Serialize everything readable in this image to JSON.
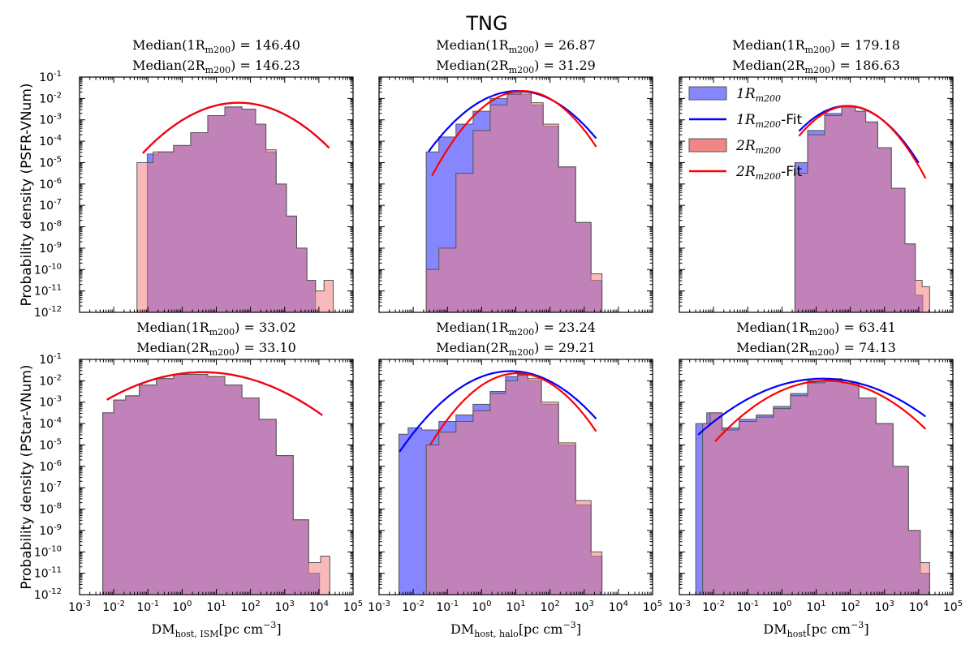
{
  "figure_title": "TNG",
  "colors": {
    "r1": "#0000ff",
    "r2": "#ff0000",
    "r1_fill": "#8080ff",
    "r2_fill": "#f08080",
    "overlap": "#c0407f",
    "edge": "#555555"
  },
  "legend": {
    "position": "top-right of upper-right panel",
    "entries": [
      {
        "math": "1R",
        "sub": "m200",
        "suffix": "",
        "style": "fill",
        "color": "r1_fill"
      },
      {
        "math": "1R",
        "sub": "m200",
        "suffix": "-Fit",
        "style": "line",
        "color": "r1"
      },
      {
        "math": "2R",
        "sub": "m200",
        "suffix": "",
        "style": "fill",
        "color": "r2_fill"
      },
      {
        "math": "2R",
        "sub": "m200",
        "suffix": "-Fit",
        "style": "line",
        "color": "r2"
      }
    ]
  },
  "chart_data": [
    {
      "type": "histogram",
      "panel": "top-left",
      "ylabel": "Probability density (PSFR-VNum)",
      "xlabel": "",
      "xscale": "log",
      "yscale": "log",
      "xlim_exp": [
        -3,
        5
      ],
      "ylim_exp": [
        -12,
        -1
      ],
      "median_1": "Median(1R_m200) = 146.40",
      "median_2": "Median(2R_m200) = 146.23",
      "hist_1": {
        "x_log": [
          -0.9,
          -0.5,
          0,
          0.5,
          1,
          1.5,
          2,
          2.3,
          2.6,
          2.9,
          3.2,
          3.5,
          3.8,
          4.0
        ],
        "y_log": [
          -4.6,
          -4.5,
          -4.2,
          -3.6,
          -2.8,
          -2.4,
          -2.5,
          -3.2,
          -4.5,
          -6,
          -7.5,
          -9,
          -10.5,
          -12
        ]
      },
      "hist_2": {
        "x_log": [
          -1.2,
          -0.5,
          0,
          0.5,
          1,
          1.5,
          2,
          2.3,
          2.6,
          2.9,
          3.2,
          3.5,
          3.8,
          4.0,
          4.3
        ],
        "y_log": [
          -5,
          -4.5,
          -4.2,
          -3.6,
          -2.8,
          -2.4,
          -2.5,
          -3.2,
          -4.4,
          -6,
          -7.5,
          -9,
          -10.5,
          -11,
          -10.5
        ]
      },
      "fit_1": {
        "x_log": [
          -1.15,
          4.3
        ],
        "mu": 1.65,
        "sigma": 0.85,
        "peak": -2.2
      },
      "fit_2": {
        "x_log": [
          -1.15,
          4.3
        ],
        "mu": 1.65,
        "sigma": 0.85,
        "peak": -2.2
      }
    },
    {
      "type": "histogram",
      "panel": "top-middle",
      "ylabel": "",
      "xlabel": "",
      "xscale": "log",
      "yscale": "log",
      "xlim_exp": [
        -3,
        5
      ],
      "ylim_exp": [
        -12,
        -1
      ],
      "median_1": "Median(1R_m200) = 26.87",
      "median_2": "Median(2R_m200) = 31.29",
      "hist_1": {
        "x_log": [
          -1.5,
          -1.0,
          -0.5,
          0,
          0.5,
          1.0,
          1.3,
          1.6,
          2.0,
          2.5,
          3.0,
          3.4
        ],
        "y_log": [
          -4.5,
          -3.8,
          -3.2,
          -2.6,
          -2.0,
          -1.7,
          -1.8,
          -2.3,
          -3.3,
          -5.2,
          -7.8,
          -10.5
        ]
      },
      "hist_2": {
        "x_log": [
          -1.5,
          -1.0,
          -0.5,
          0,
          0.5,
          1.0,
          1.3,
          1.6,
          2.0,
          2.5,
          3.0,
          3.4
        ],
        "y_log": [
          -10,
          -9,
          -5.5,
          -3.5,
          -2.3,
          -1.8,
          -1.7,
          -2.2,
          -3.2,
          -5.2,
          -7.8,
          -10.2
        ]
      },
      "fit_1": {
        "x_log": [
          -1.55,
          3.35
        ],
        "mu": 1.05,
        "sigma": 0.72,
        "peak": -1.65
      },
      "fit_2": {
        "x_log": [
          -1.45,
          3.35
        ],
        "mu": 1.2,
        "sigma": 0.62,
        "peak": -1.65
      }
    },
    {
      "type": "histogram",
      "panel": "top-right",
      "ylabel": "",
      "xlabel": "",
      "xscale": "log",
      "yscale": "log",
      "xlim_exp": [
        -3,
        5
      ],
      "ylim_exp": [
        -12,
        -1
      ],
      "median_1": "Median(1R_m200) = 179.18",
      "median_2": "Median(2R_m200) = 186.63",
      "hist_1": {
        "x_log": [
          0.5,
          1.0,
          1.5,
          2.0,
          2.3,
          2.6,
          3.0,
          3.4,
          3.8,
          4.0
        ],
        "y_log": [
          -5,
          -3.5,
          -2.7,
          -2.4,
          -2.6,
          -3.1,
          -4.3,
          -6.2,
          -8.8,
          -11.2
        ]
      },
      "hist_2": {
        "x_log": [
          0.5,
          1.0,
          1.5,
          2.0,
          2.3,
          2.6,
          3.0,
          3.4,
          3.8,
          4.0,
          4.2
        ],
        "y_log": [
          -5.5,
          -3.7,
          -2.8,
          -2.4,
          -2.6,
          -3.1,
          -4.3,
          -6.2,
          -8.8,
          -10.5,
          -10.8
        ]
      },
      "fit_1": {
        "x_log": [
          0.5,
          4.0
        ],
        "mu": 1.9,
        "sigma": 0.6,
        "peak": -2.35
      },
      "fit_2": {
        "x_log": [
          0.5,
          4.2
        ],
        "mu": 1.95,
        "sigma": 0.57,
        "peak": -2.35
      }
    },
    {
      "type": "histogram",
      "panel": "bottom-left",
      "ylabel": "Probability density (PStar-VNum)",
      "xlabel": "DM_host,ISM [pc cm^-3]",
      "xscale": "log",
      "yscale": "log",
      "xlim_exp": [
        -3,
        5
      ],
      "ylim_exp": [
        -12,
        -1
      ],
      "median_1": "Median(1R_m200) = 33.02",
      "median_2": "Median(2R_m200) = 33.10",
      "hist_1": {
        "x_log": [
          -2.2,
          -1.8,
          -1.5,
          -1.0,
          -0.5,
          0,
          0.5,
          1.0,
          1.5,
          2.0,
          2.5,
          3.0,
          3.5,
          3.9
        ],
        "y_log": [
          -3.5,
          -2.9,
          -2.7,
          -2.2,
          -1.9,
          -1.7,
          -1.7,
          -1.8,
          -2.2,
          -2.8,
          -3.8,
          -5.5,
          -8.5,
          -11
        ]
      },
      "hist_2": {
        "x_log": [
          -2.2,
          -1.8,
          -1.5,
          -1.0,
          -0.5,
          0,
          0.5,
          1.0,
          1.5,
          2.0,
          2.5,
          3.0,
          3.5,
          3.9,
          4.2
        ],
        "y_log": [
          -3.5,
          -2.9,
          -2.7,
          -2.2,
          -1.9,
          -1.7,
          -1.7,
          -1.8,
          -2.2,
          -2.8,
          -3.8,
          -5.5,
          -8.5,
          -10.5,
          -10.2
        ]
      },
      "fit_1": {
        "x_log": [
          -2.2,
          4.1
        ],
        "mu": 0.6,
        "sigma": 1.15,
        "peak": -1.6
      },
      "fit_2": {
        "x_log": [
          -2.2,
          4.1
        ],
        "mu": 0.6,
        "sigma": 1.15,
        "peak": -1.6
      }
    },
    {
      "type": "histogram",
      "panel": "bottom-middle",
      "ylabel": "",
      "xlabel": "DM_host,halo [pc cm^-3]",
      "xscale": "log",
      "yscale": "log",
      "xlim_exp": [
        -3,
        5
      ],
      "ylim_exp": [
        -12,
        -1
      ],
      "median_1": "Median(1R_m200) = 23.24",
      "median_2": "Median(2R_m200) = 29.21",
      "hist_1": {
        "x_log": [
          -2.3,
          -2.0,
          -1.5,
          -1.0,
          -0.5,
          0,
          0.5,
          0.9,
          1.2,
          1.5,
          2.0,
          2.5,
          3.0,
          3.4
        ],
        "y_log": [
          -4.5,
          -4.2,
          -4.3,
          -3.9,
          -3.6,
          -3.1,
          -2.5,
          -1.8,
          -1.7,
          -2.0,
          -3.1,
          -5.0,
          -7.8,
          -10.2
        ]
      },
      "hist_2": {
        "x_log": [
          -1.5,
          -1.0,
          -0.5,
          0,
          0.5,
          0.9,
          1.2,
          1.5,
          2.0,
          2.5,
          3.0,
          3.4
        ],
        "y_log": [
          -5.0,
          -4.4,
          -3.9,
          -3.4,
          -2.6,
          -2.0,
          -1.75,
          -1.9,
          -3.0,
          -4.9,
          -7.6,
          -10.0
        ]
      },
      "fit_1": {
        "x_log": [
          -2.4,
          3.35
        ],
        "mu": 0.85,
        "sigma": 0.78,
        "peak": -1.55
      },
      "fit_2": {
        "x_log": [
          -1.5,
          3.35
        ],
        "mu": 1.05,
        "sigma": 0.65,
        "peak": -1.65
      }
    },
    {
      "type": "histogram",
      "panel": "bottom-right",
      "ylabel": "",
      "xlabel": "DM_host [pc cm^-3]",
      "xscale": "log",
      "yscale": "log",
      "xlim_exp": [
        -3,
        5
      ],
      "ylim_exp": [
        -12,
        -1
      ],
      "median_1": "Median(1R_m200) = 63.41",
      "median_2": "Median(2R_m200) = 74.13",
      "hist_1": {
        "x_log": [
          -2.4,
          -2.0,
          -1.5,
          -1.0,
          -0.5,
          0,
          0.5,
          1.0,
          1.5,
          2.0,
          2.5,
          3.0,
          3.5,
          3.9,
          4.2
        ],
        "y_log": [
          -4.0,
          -3.5,
          -4.2,
          -3.8,
          -3.6,
          -3.2,
          -2.6,
          -2.0,
          -1.9,
          -2.1,
          -2.8,
          -4.0,
          -6.0,
          -9.0,
          -11.0
        ]
      },
      "hist_2": {
        "x_log": [
          -2.2,
          -2.0,
          -1.5,
          -1.0,
          -0.5,
          0,
          0.5,
          1.0,
          1.5,
          2.0,
          2.5,
          3.0,
          3.5,
          3.9,
          4.2
        ],
        "y_log": [
          -4.0,
          -3.5,
          -4.3,
          -3.9,
          -3.7,
          -3.3,
          -2.7,
          -2.1,
          -1.95,
          -2.1,
          -2.8,
          -4.0,
          -6.0,
          -9.0,
          -10.5
        ]
      },
      "fit_1": {
        "x_log": [
          -2.45,
          4.2
        ],
        "mu": 1.2,
        "sigma": 1.05,
        "peak": -1.9
      },
      "fit_2": {
        "x_log": [
          -1.95,
          4.2
        ],
        "mu": 1.3,
        "sigma": 0.9,
        "peak": -2.0
      }
    }
  ]
}
